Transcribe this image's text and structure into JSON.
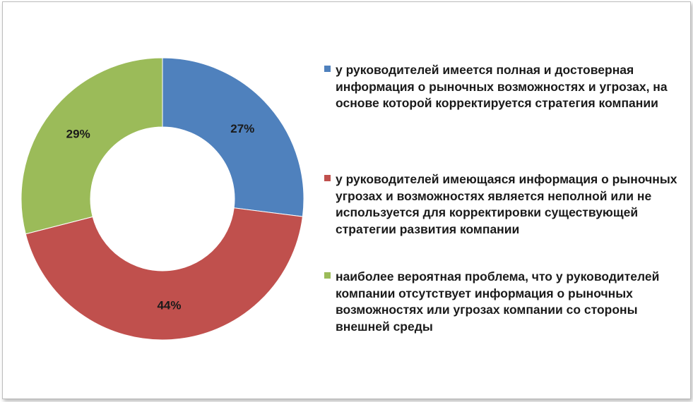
{
  "chart_data": {
    "type": "pie",
    "donut": true,
    "values": [
      27,
      44,
      29
    ],
    "value_labels": [
      "27%",
      "44%",
      "29%"
    ],
    "labels": [
      "у руководителей имеется полная и достоверная информация о рыночных возможностях и угрозах, на основе которой корректируется стратегия компании",
      "у руководителей имеющаяся информация о рыночных угрозах и возможностях является неполной или не используется для корректировки существующей стратегии развития компании",
      "наиболее вероятная проблема, что у руководителей компании отсутствует информация о рыночных возможностях или угрозах компании со стороны внешней среды"
    ],
    "colors": [
      "#4f81bd",
      "#c0504d",
      "#9bbb59"
    ],
    "legend_position": "right"
  }
}
